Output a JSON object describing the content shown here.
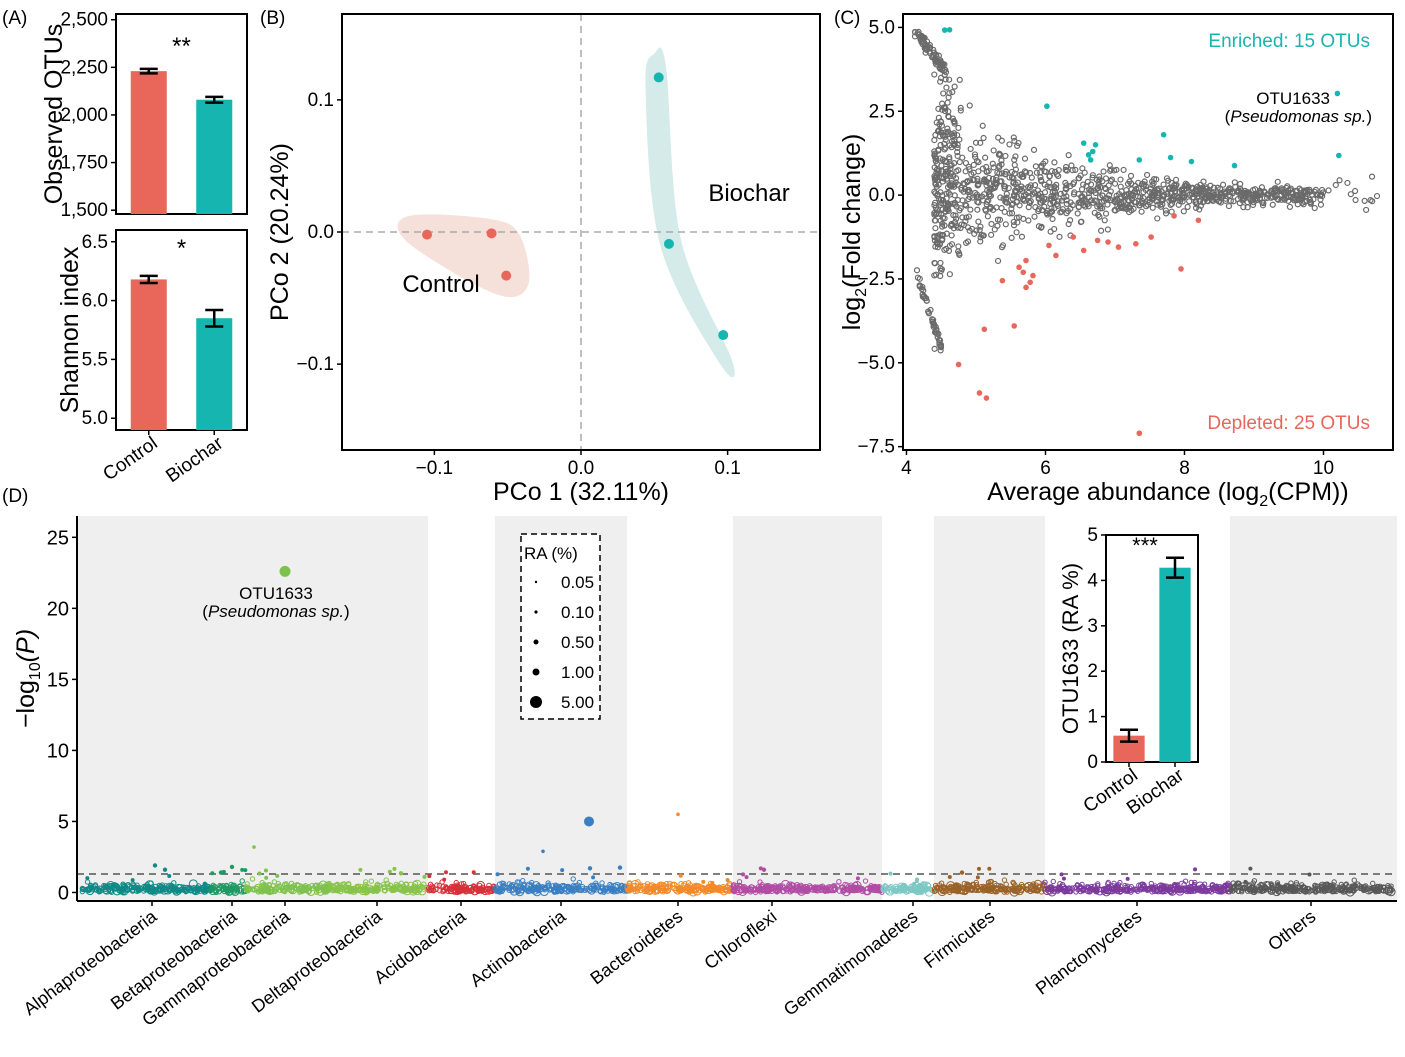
{
  "panels": {
    "A": "(A)",
    "B": "(B)",
    "C": "(C)",
    "D": "(D)"
  },
  "colors": {
    "control": "#e8675a",
    "biochar": "#17b5b0",
    "gray_point": "#6a6a6a",
    "ellipse_control": "#f6e0da",
    "ellipse_biochar": "#d4ebea",
    "shade": "#efefef"
  },
  "chart_data": [
    {
      "id": "A_observed",
      "type": "bar",
      "categories": [
        "Control",
        "Biochar"
      ],
      "values": [
        2230,
        2080
      ],
      "errors": [
        12,
        15
      ],
      "ylabel": "Observed OTUs",
      "ylim": [
        1480,
        2530
      ],
      "yticks": [
        1500,
        1750,
        2000,
        2250,
        2500
      ],
      "ytick_labels": [
        "1,500",
        "1,750",
        "2,000",
        "2,250",
        "2,500"
      ],
      "significance": "**",
      "grid": false
    },
    {
      "id": "A_shannon",
      "type": "bar",
      "categories": [
        "Control",
        "Biochar"
      ],
      "values": [
        6.18,
        5.85
      ],
      "errors": [
        0.03,
        0.07
      ],
      "ylabel": "Shannon index",
      "ylim": [
        4.9,
        6.6
      ],
      "yticks": [
        5.0,
        5.5,
        6.0,
        6.5
      ],
      "ytick_labels": [
        "5.0",
        "5.5",
        "6.0",
        "6.5"
      ],
      "significance": "*",
      "xtick_labels": [
        "Control",
        "Biochar"
      ],
      "grid": false
    },
    {
      "id": "B_pcoa",
      "type": "scatter",
      "xlabel": "PCo 1 (32.11%)",
      "ylabel": "PCo 2 (20.24%)",
      "xlim": [
        -0.163,
        0.163
      ],
      "ylim": [
        -0.165,
        0.165
      ],
      "xticks": [
        -0.1,
        0.0,
        0.1
      ],
      "xtick_labels": [
        "−0.1",
        "0.0",
        "0.1"
      ],
      "yticks": [
        -0.1,
        0.0,
        0.1
      ],
      "ytick_labels": [
        "−0.1",
        "0.0",
        "0.1"
      ],
      "series": [
        {
          "name": "Control",
          "points": [
            [
              -0.105,
              -0.002
            ],
            [
              -0.061,
              -0.001
            ],
            [
              -0.051,
              -0.033
            ]
          ],
          "hull": [
            [
              -0.118,
              0.012
            ],
            [
              -0.063,
              0.01
            ],
            [
              -0.042,
              -0.002
            ],
            [
              -0.036,
              -0.04
            ],
            [
              -0.058,
              -0.047
            ],
            [
              -0.118,
              -0.008
            ]
          ]
        },
        {
          "name": "Biochar",
          "points": [
            [
              0.053,
              0.117
            ],
            [
              0.06,
              -0.009
            ],
            [
              0.097,
              -0.078
            ]
          ],
          "hull": [
            [
              0.05,
              0.135
            ],
            [
              0.058,
              0.125
            ],
            [
              0.068,
              -0.005
            ],
            [
              0.103,
              -0.097
            ],
            [
              0.095,
              -0.1
            ],
            [
              0.054,
              -0.01
            ],
            [
              0.044,
              0.11
            ]
          ]
        }
      ],
      "annotations": [
        "Control",
        "Biochar"
      ],
      "grid": false
    },
    {
      "id": "C_ma",
      "type": "scatter",
      "xlabel_main": "Average abundance (log",
      "xlabel_sub": "2",
      "xlabel_tail": "(CPM))",
      "ylabel_main": "log",
      "ylabel_sub": "2",
      "ylabel_tail": "(Fold change)",
      "xlim": [
        3.95,
        11.0
      ],
      "ylim": [
        -7.6,
        5.4
      ],
      "xticks": [
        4,
        6,
        8,
        10
      ],
      "xtick_labels": [
        "4",
        "6",
        "8",
        "10"
      ],
      "yticks": [
        5.0,
        2.5,
        0.0,
        -2.5,
        -5.0,
        -7.5
      ],
      "ytick_labels": [
        "5.0",
        "2.5",
        "0.0",
        "−2.5",
        "−5.0",
        "−7.5"
      ],
      "enriched_label": "Enriched: 15 OTUs",
      "depleted_label": "Depleted: 25 OTUs",
      "otu_label": "OTU1633",
      "otu_species": "Pseudomonas sp.",
      "otu_point": [
        10.2,
        3.03
      ],
      "enriched_points": [
        [
          4.55,
          4.92
        ],
        [
          4.62,
          4.93
        ],
        [
          6.02,
          2.65
        ],
        [
          6.55,
          1.55
        ],
        [
          6.62,
          1.2
        ],
        [
          6.68,
          1.3
        ],
        [
          6.72,
          1.5
        ],
        [
          6.65,
          1.05
        ],
        [
          7.35,
          1.05
        ],
        [
          7.7,
          1.8
        ],
        [
          7.8,
          1.12
        ],
        [
          8.1,
          1.0
        ],
        [
          8.72,
          0.88
        ],
        [
          10.2,
          3.03
        ],
        [
          10.22,
          1.18
        ]
      ],
      "depleted_points": [
        [
          4.75,
          -5.05
        ],
        [
          5.05,
          -5.9
        ],
        [
          5.15,
          -6.05
        ],
        [
          5.12,
          -4.0
        ],
        [
          5.38,
          -2.55
        ],
        [
          5.55,
          -3.9
        ],
        [
          5.62,
          -2.15
        ],
        [
          5.68,
          -2.3
        ],
        [
          5.72,
          -1.95
        ],
        [
          5.78,
          -2.6
        ],
        [
          5.82,
          -2.4
        ],
        [
          5.72,
          -2.75
        ],
        [
          6.05,
          -1.5
        ],
        [
          6.15,
          -1.8
        ],
        [
          6.4,
          -1.25
        ],
        [
          6.55,
          -1.65
        ],
        [
          6.75,
          -1.35
        ],
        [
          6.9,
          -1.4
        ],
        [
          7.05,
          -1.55
        ],
        [
          7.3,
          -1.45
        ],
        [
          7.52,
          -1.25
        ],
        [
          7.85,
          -0.62
        ],
        [
          7.95,
          -2.2
        ],
        [
          8.2,
          -0.75
        ],
        [
          7.35,
          -7.1
        ]
      ],
      "grid": false
    },
    {
      "id": "D_manhattan",
      "type": "scatter",
      "ylabel_main": "−log",
      "ylabel_sub": "10",
      "ylabel_tail": "(P)",
      "ylim": [
        -0.6,
        26.5
      ],
      "yticks": [
        0,
        5,
        10,
        15,
        20,
        25
      ],
      "ytick_labels": [
        "0",
        "5",
        "10",
        "15",
        "20",
        "25"
      ],
      "threshold": 1.3,
      "taxa": [
        {
          "name": "Alphaproteobacteria",
          "color": "#0f8a86"
        },
        {
          "name": "Betaproteobacteria",
          "color": "#1e9a63"
        },
        {
          "name": "Gammaproteobacteria",
          "color": "#7ec24d"
        },
        {
          "name": "Deltaproteobacteria",
          "color": "#88c34a"
        },
        {
          "name": "Acidobacteria",
          "color": "#d8313a"
        },
        {
          "name": "Actinobacteria",
          "color": "#3a7fc1"
        },
        {
          "name": "Bacteroidetes",
          "color": "#f28a2a"
        },
        {
          "name": "Chloroflexi",
          "color": "#b14ca4"
        },
        {
          "name": "Gemmatimonadetes",
          "color": "#7cc8c4"
        },
        {
          "name": "Firmicutes",
          "color": "#9a6227"
        },
        {
          "name": "Planctomycetes",
          "color": "#7c3a9c"
        },
        {
          "name": "Others",
          "color": "#585858"
        }
      ],
      "highlights": [
        {
          "taxon": "Gammaproteobacteria",
          "p": 22.6,
          "ra": 1.0
        },
        {
          "taxon": "Actinobacteria",
          "p": 5.0,
          "ra": 0.6
        },
        {
          "taxon": "Bacteroidetes",
          "p": 5.5,
          "ra": 0.08
        },
        {
          "taxon": "Gammaproteobacteria",
          "p": 3.2,
          "ra": 0.05
        },
        {
          "taxon": "Actinobacteria",
          "p": 2.9,
          "ra": 0.05
        }
      ],
      "otu_label": "OTU1633",
      "otu_species": "Pseudomonas sp.",
      "legend": {
        "title": "RA (%)",
        "entries": [
          "0.05",
          "0.10",
          "0.50",
          "1.00",
          "5.00"
        ]
      },
      "legend_position": "top-center",
      "grid": false
    },
    {
      "id": "D_inset",
      "type": "bar",
      "categories": [
        "Control",
        "Biochar"
      ],
      "values": [
        0.58,
        4.28
      ],
      "errors": [
        0.13,
        0.22
      ],
      "ylabel": "OTU1633 (RA %)",
      "ylim": [
        0,
        5
      ],
      "yticks": [
        0,
        1,
        2,
        3,
        4,
        5
      ],
      "ytick_labels": [
        "0",
        "1",
        "2",
        "3",
        "4",
        "5"
      ],
      "significance": "***",
      "grid": false
    }
  ]
}
